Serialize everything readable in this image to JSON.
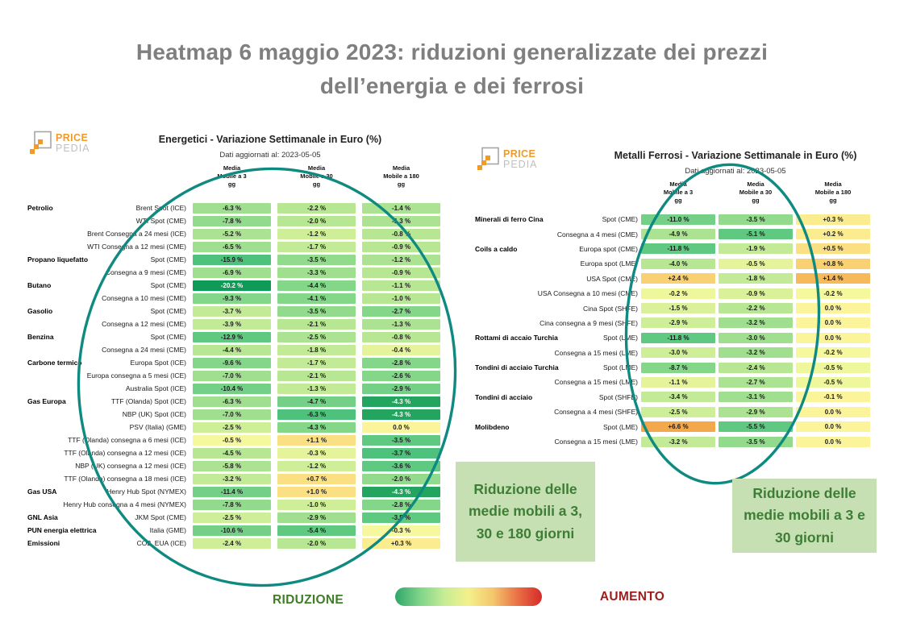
{
  "page_title": "Heatmap 6 maggio 2023: riduzioni generalizzate dei prezzi\ndell’energia e dei ferrosi",
  "logo": {
    "top": "PRICE",
    "bottom": "PEDIA"
  },
  "chart_data": [
    {
      "type": "heatmap",
      "id": "energetici",
      "title": "Energetici - Variazione Settimanale in Euro (%)",
      "subtitle": "Dati aggiornati al: 2023-05-05",
      "unit": "%",
      "columns": [
        "Media\nMobile a 3\ngg",
        "Media\nMobile a 30\ngg",
        "Media\nMobile a 180\ngg"
      ],
      "rows": [
        {
          "category": "Petrolio",
          "label": "Brent Spot (ICE)",
          "values": [
            -6.3,
            -2.2,
            -1.4
          ],
          "colors": [
            "#a0df8f",
            "#b8e794",
            "#ace392"
          ]
        },
        {
          "category": "",
          "label": "WTI Spot (CME)",
          "values": [
            -7.8,
            -2.0,
            -1.3
          ],
          "colors": [
            "#93db8c",
            "#b8e794",
            "#ace392"
          ]
        },
        {
          "category": "",
          "label": "Brent Consegna a 24 mesi (ICE)",
          "values": [
            -5.2,
            -1.2,
            -0.8
          ],
          "colors": [
            "#ace392",
            "#cfee98",
            "#b8e794"
          ]
        },
        {
          "category": "",
          "label": "WTI Consegna a 12 mesi (CME)",
          "values": [
            -6.5,
            -1.7,
            -0.9
          ],
          "colors": [
            "#a0df8f",
            "#c3ea96",
            "#b8e794"
          ]
        },
        {
          "category": "Propano liquefatto",
          "label": "Spot (CME)",
          "values": [
            -15.9,
            -3.5,
            -1.2
          ],
          "colors": [
            "#4ec17c",
            "#93db8c",
            "#ace392"
          ]
        },
        {
          "category": "",
          "label": "Consegna a 9 mesi (CME)",
          "values": [
            -6.9,
            -3.3,
            -0.9
          ],
          "colors": [
            "#a0df8f",
            "#a0df8f",
            "#b8e794"
          ]
        },
        {
          "category": "Butano",
          "label": "Spot (CME)",
          "values": [
            -20.2,
            -4.4,
            -1.1
          ],
          "colors": [
            "#0f9b57",
            "#84d689",
            "#b8e794"
          ]
        },
        {
          "category": "",
          "label": "Consegna a 10 mesi (CME)",
          "values": [
            -9.3,
            -4.1,
            -1.0
          ],
          "colors": [
            "#84d689",
            "#84d689",
            "#b8e794"
          ]
        },
        {
          "category": "Gasolio",
          "label": "Spot (CME)",
          "values": [
            -3.7,
            -3.5,
            -2.7
          ],
          "colors": [
            "#c3ea96",
            "#93db8c",
            "#84d689"
          ]
        },
        {
          "category": "",
          "label": "Consegna a 12 mesi (CME)",
          "values": [
            -3.9,
            -2.1,
            -1.3
          ],
          "colors": [
            "#c3ea96",
            "#b8e794",
            "#ace392"
          ]
        },
        {
          "category": "Benzina",
          "label": "Spot (CME)",
          "values": [
            -12.9,
            -2.5,
            -0.8
          ],
          "colors": [
            "#60c981",
            "#ace392",
            "#b8e794"
          ]
        },
        {
          "category": "",
          "label": "Consegna a 24 mesi (CME)",
          "values": [
            -4.4,
            -1.8,
            -0.4
          ],
          "colors": [
            "#b8e794",
            "#c3ea96",
            "#e5f49b"
          ]
        },
        {
          "category": "Carbone termico",
          "label": "Europa Spot (ICE)",
          "values": [
            -9.6,
            -1.7,
            -2.8
          ],
          "colors": [
            "#84d689",
            "#c3ea96",
            "#84d689"
          ]
        },
        {
          "category": "",
          "label": "Europa consegna a 5 mesi (ICE)",
          "values": [
            -7.0,
            -2.1,
            -2.6
          ],
          "colors": [
            "#a0df8f",
            "#b8e794",
            "#84d689"
          ]
        },
        {
          "category": "",
          "label": "Australia Spot (ICE)",
          "values": [
            -10.4,
            -1.3,
            -2.9
          ],
          "colors": [
            "#74d086",
            "#c3ea96",
            "#74d086"
          ]
        },
        {
          "category": "Gas Europa",
          "label": "TTF (Olanda) Spot (ICE)",
          "values": [
            -6.3,
            -4.7,
            -4.3
          ],
          "colors": [
            "#a0df8f",
            "#74d086",
            "#23a55f"
          ]
        },
        {
          "category": "",
          "label": "NBP (UK) Spot (ICE)",
          "values": [
            -7.0,
            -6.3,
            -4.3
          ],
          "colors": [
            "#a0df8f",
            "#4ec17c",
            "#23a55f"
          ]
        },
        {
          "category": "",
          "label": "PSV (Italia) (GME)",
          "values": [
            -2.5,
            -4.3,
            0.0
          ],
          "colors": [
            "#cfee98",
            "#84d689",
            "#fbf49a"
          ]
        },
        {
          "category": "",
          "label": "TTF (Olanda) consegna a 6 mesi (ICE)",
          "values": [
            -0.5,
            1.1,
            -3.5
          ],
          "colors": [
            "#f6f89d",
            "#fbe083",
            "#60c981"
          ]
        },
        {
          "category": "",
          "label": "TTF (Olanda) consegna a 12 mesi (ICE)",
          "values": [
            -4.5,
            -0.3,
            -3.7
          ],
          "colors": [
            "#b8e794",
            "#e5f49b",
            "#4ec17c"
          ]
        },
        {
          "category": "",
          "label": "NBP (UK) consegna a 12 mesi (ICE)",
          "values": [
            -5.8,
            -1.2,
            -3.6
          ],
          "colors": [
            "#ace392",
            "#cfee98",
            "#60c981"
          ]
        },
        {
          "category": "",
          "label": "TTF (Olanda) consegna a 18 mesi (ICE)",
          "values": [
            -3.2,
            0.7,
            -2.0
          ],
          "colors": [
            "#c3ea96",
            "#fbe083",
            "#93db8c"
          ]
        },
        {
          "category": "Gas USA",
          "label": "Henry Hub Spot (NYMEX)",
          "values": [
            -11.4,
            1.0,
            -4.3
          ],
          "colors": [
            "#74d086",
            "#fbe083",
            "#23a55f"
          ]
        },
        {
          "category": "",
          "label": "Henry Hub consegna a 4 mesi (NYMEX)",
          "values": [
            -7.8,
            -1.0,
            -2.8
          ],
          "colors": [
            "#93db8c",
            "#cfee98",
            "#84d689"
          ]
        },
        {
          "category": "GNL Asia",
          "label": "JKM Spot (CME)",
          "values": [
            -2.5,
            -2.9,
            -3.5
          ],
          "colors": [
            "#cfee98",
            "#a0df8f",
            "#60c981"
          ]
        },
        {
          "category": "PUN energia elettrica",
          "label": "Italia (GME)",
          "values": [
            -10.6,
            -5.4,
            -0.3
          ],
          "colors": [
            "#74d086",
            "#60c981",
            "#f6f89d"
          ]
        },
        {
          "category": "Emissioni",
          "label": "CO2, EUA (ICE)",
          "values": [
            -2.4,
            -2.0,
            0.3
          ],
          "colors": [
            "#cfee98",
            "#b8e794",
            "#fcec90"
          ]
        }
      ]
    },
    {
      "type": "heatmap",
      "id": "metalli-ferrosi",
      "title": "Metalli Ferrosi - Variazione Settimanale in Euro (%)",
      "subtitle": "Dati aggiornati al: 2023-05-05",
      "unit": "%",
      "columns": [
        "Media\nMobile a 3\ngg",
        "Media\nMobile a 30\ngg",
        "Media\nMobile a 180\ngg"
      ],
      "rows": [
        {
          "category": "Minerali di ferro Cina",
          "label": "Spot (CME)",
          "values": [
            -11.0,
            -3.5,
            0.3
          ],
          "colors": [
            "#74d086",
            "#93db8c",
            "#fcec90"
          ]
        },
        {
          "category": "",
          "label": "Consegna a 4 mesi (CME)",
          "values": [
            -4.9,
            -5.1,
            0.2
          ],
          "colors": [
            "#ace392",
            "#60c981",
            "#fcec90"
          ]
        },
        {
          "category": "Coils a caldo",
          "label": "Europa spot (CME)",
          "values": [
            -11.8,
            -1.9,
            0.5
          ],
          "colors": [
            "#60c981",
            "#c3ea96",
            "#fbe083"
          ]
        },
        {
          "category": "",
          "label": "Europa spot (LME)",
          "values": [
            -4.0,
            -0.5,
            0.8
          ],
          "colors": [
            "#b8e794",
            "#e5f49b",
            "#f9d172"
          ]
        },
        {
          "category": "",
          "label": "USA Spot (CME)",
          "values": [
            2.4,
            -1.8,
            1.4
          ],
          "colors": [
            "#f9d172",
            "#c3ea96",
            "#f6ba5a"
          ]
        },
        {
          "category": "",
          "label": "USA Consegna a 10 mesi (CME)",
          "values": [
            -0.2,
            -0.9,
            -0.2
          ],
          "colors": [
            "#eef79c",
            "#daf19a",
            "#f6f89d"
          ]
        },
        {
          "category": "",
          "label": "Cina Spot (SHFE)",
          "values": [
            -1.5,
            -2.2,
            0.0
          ],
          "colors": [
            "#daf19a",
            "#b8e794",
            "#fbf49a"
          ]
        },
        {
          "category": "",
          "label": "Cina consegna a 9 mesi (SHFE)",
          "values": [
            -2.9,
            -3.2,
            0.0
          ],
          "colors": [
            "#cfee98",
            "#a0df8f",
            "#fbf49a"
          ]
        },
        {
          "category": "Rottami di accaio Turchia",
          "label": "Spot (LME)",
          "values": [
            -11.8,
            -3.0,
            0.0
          ],
          "colors": [
            "#60c981",
            "#a0df8f",
            "#fbf49a"
          ]
        },
        {
          "category": "",
          "label": "Consegna a 15 mesi (LME)",
          "values": [
            -3.0,
            -3.2,
            -0.2
          ],
          "colors": [
            "#cfee98",
            "#a0df8f",
            "#f6f89d"
          ]
        },
        {
          "category": "Tondini di acciaio Turchia",
          "label": "Spot (LME)",
          "values": [
            -8.7,
            -2.4,
            -0.5
          ],
          "colors": [
            "#84d689",
            "#b8e794",
            "#eef79c"
          ]
        },
        {
          "category": "",
          "label": "Consegna a 15 mesi (LME)",
          "values": [
            -1.1,
            -2.7,
            -0.5
          ],
          "colors": [
            "#e5f49b",
            "#ace392",
            "#eef79c"
          ]
        },
        {
          "category": "Tondini di acciaio",
          "label": "Spot (SHFE)",
          "values": [
            -3.4,
            -3.1,
            -0.1
          ],
          "colors": [
            "#c3ea96",
            "#a0df8f",
            "#fbf49a"
          ]
        },
        {
          "category": "",
          "label": "Consegna a 4 mesi (SHFE)",
          "values": [
            -2.5,
            -2.9,
            0.0
          ],
          "colors": [
            "#cfee98",
            "#ace392",
            "#fbf49a"
          ]
        },
        {
          "category": "Molibdeno",
          "label": "Spot (LME)",
          "values": [
            6.6,
            -5.5,
            0.0
          ],
          "colors": [
            "#f3a84b",
            "#60c981",
            "#fbf49a"
          ]
        },
        {
          "category": "",
          "label": "Consegna a 15 mesi (LME)",
          "values": [
            -3.2,
            -3.5,
            0.0
          ],
          "colors": [
            "#c3ea96",
            "#93db8c",
            "#fbf49a"
          ]
        }
      ]
    }
  ],
  "annotations": {
    "left_box": "Riduzione delle medie mobili a 3, 30 e 180 giorni",
    "right_box": "Riduzione delle medie mobili a 3 e 30 giorni"
  },
  "legend": {
    "reduction_label": "RIDUZIONE",
    "increase_label": "AUMENTO",
    "gradient": [
      "#2fa66a",
      "#7ed489",
      "#c6ec95",
      "#f4f08b",
      "#f4c66d",
      "#ea7046",
      "#d52b28"
    ]
  },
  "colors": {
    "title_gray": "#7f7f7f",
    "ellipse_teal": "#0f8a80",
    "note_bg": "#c6e0b4",
    "note_text": "#3e7d35",
    "reduction_green": "#3f7e27",
    "increase_red": "#9e1b1b",
    "logo_orange": "#f09a2a",
    "logo_gray": "#c0c0c0",
    "cell_dark_text": "#1a1a1a",
    "cell_light_text": "#ffffff"
  }
}
